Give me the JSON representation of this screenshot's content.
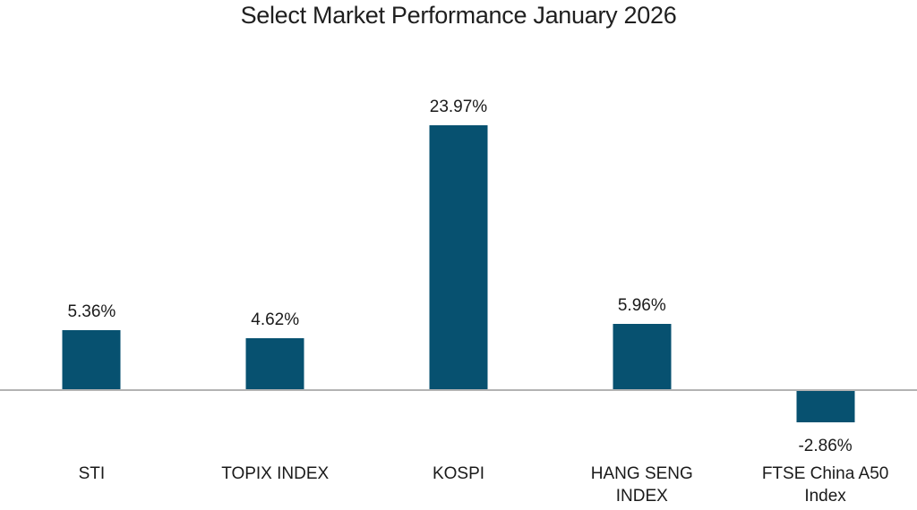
{
  "chart_data": {
    "type": "bar",
    "title": "Select Market Performance January 2026",
    "categories": [
      "STI",
      "TOPIX INDEX",
      "KOSPI",
      "HANG SENG INDEX",
      "FTSE China A50 Index"
    ],
    "values": [
      5.36,
      4.62,
      23.97,
      5.96,
      -2.86
    ],
    "value_labels": [
      "5.36%",
      "4.62%",
      "23.97%",
      "5.96%",
      "-2.86%"
    ],
    "xlabel": "",
    "ylabel": "",
    "grid": "off",
    "legend": "none",
    "y_axis_ticks": "hidden",
    "bar_color": "#075170",
    "axis_line_color": "#b3b3b3",
    "text_color": "#1a1a1a",
    "background_color": "#ffffff"
  }
}
